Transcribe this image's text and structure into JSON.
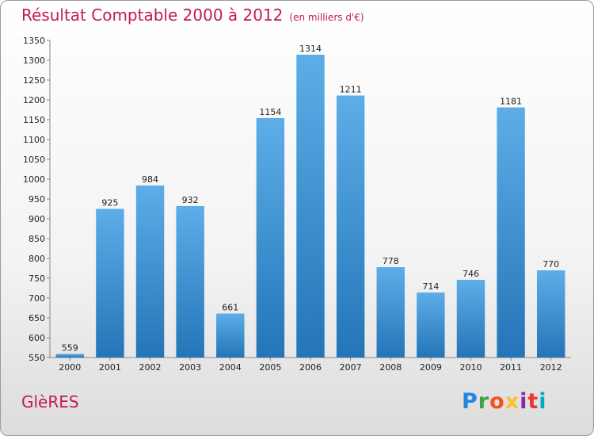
{
  "header": {
    "title": "Résultat Comptable 2000 à 2012",
    "subtitle": "(en milliers d'€)"
  },
  "footer": {
    "commune": "GlèRES",
    "logo_text": "Proxiti",
    "logo_colors": [
      "#1e88e5",
      "#43a047",
      "#f4511e",
      "#fbc02d",
      "#8e24aa",
      "#e53935",
      "#00acc1"
    ]
  },
  "chart_data": {
    "type": "bar",
    "title": "Résultat Comptable 2000 à 2012",
    "subtitle": "(en milliers d'€)",
    "xlabel": "",
    "ylabel": "",
    "categories": [
      "2000",
      "2001",
      "2002",
      "2003",
      "2004",
      "2005",
      "2006",
      "2007",
      "2008",
      "2009",
      "2010",
      "2011",
      "2012"
    ],
    "values": [
      559,
      925,
      984,
      932,
      661,
      1154,
      1314,
      1211,
      778,
      714,
      746,
      1181,
      770
    ],
    "ylim": [
      550,
      1350
    ],
    "yticks": [
      550,
      600,
      650,
      700,
      750,
      800,
      850,
      900,
      950,
      1000,
      1050,
      1100,
      1150,
      1200,
      1250,
      1300,
      1350
    ],
    "grid": false,
    "bar_color_top": "#5dade8",
    "bar_color_bottom": "#2475b8"
  }
}
